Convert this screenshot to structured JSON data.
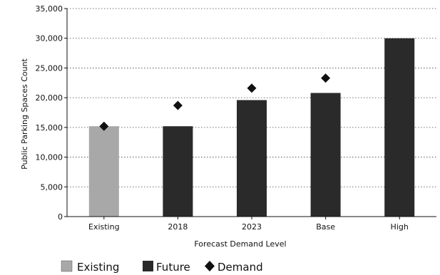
{
  "chart_data": {
    "type": "bar",
    "categories": [
      "Existing",
      "2018",
      "2023",
      "Base",
      "High"
    ],
    "bar_values": [
      15200,
      15200,
      19600,
      20800,
      30000
    ],
    "bar_series_per_category": [
      "Existing",
      "Future",
      "Future",
      "Future",
      "Future"
    ],
    "demand_values": [
      15200,
      18700,
      21600,
      23300,
      null
    ],
    "series": [
      {
        "name": "Existing",
        "values": [
          15200,
          null,
          null,
          null,
          null
        ],
        "color": "#a8a8a8"
      },
      {
        "name": "Future",
        "values": [
          null,
          15200,
          19600,
          20800,
          30000
        ],
        "color": "#2a2a2a"
      },
      {
        "name": "Demand",
        "values": [
          15200,
          18700,
          21600,
          23300,
          null
        ],
        "color": "#111111",
        "marker": "diamond"
      }
    ],
    "title": "",
    "xlabel": "Forecast Demand Level",
    "ylabel": "Public Parking Spaces Count",
    "ylim": [
      0,
      35000
    ],
    "yticks": [
      0,
      5000,
      10000,
      15000,
      20000,
      25000,
      30000,
      35000
    ],
    "ytick_labels": [
      "0",
      "5,000",
      "10,000",
      "15,000",
      "20,000",
      "25,000",
      "30,000",
      "35,000"
    ],
    "grid": "horizontal dotted",
    "legend": {
      "placement": "bottom-left",
      "entries": [
        "Existing",
        "Future",
        "Demand"
      ]
    }
  }
}
